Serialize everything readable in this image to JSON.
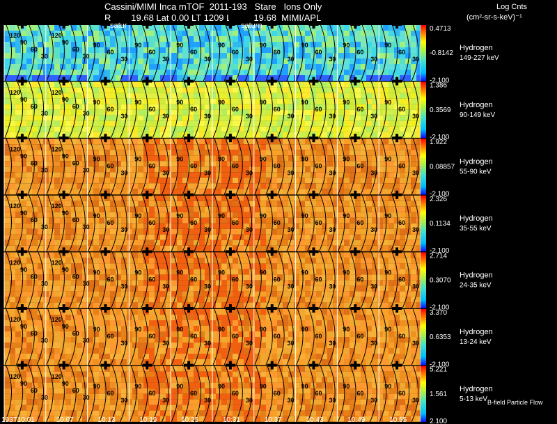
{
  "header": {
    "title": "Cassini/MIMI Inca mTOF  2011-193   Stare   Ions Only",
    "line2": "R        19.68 Lat 0.00 LT 1209 L         19.68  MIMI/APL",
    "colorbar_title_1": "Log Cnts",
    "colorbar_title_2": "(cm²-sr-s-keV)⁻¹"
  },
  "overlay_labels": [
    "satur",
    "saturn"
  ],
  "footer_note": "B-field Particle Flow",
  "colors": {
    "background": "#000000",
    "contour": "#000000",
    "grid": "#ffffff"
  },
  "chart_data": {
    "type": "heatmap",
    "time_labels": [
      "193T10:01",
      "10:07",
      "10:13",
      "10:19",
      "10:25",
      "10:31",
      "10:37",
      "10:43",
      "10:49",
      "10:55"
    ],
    "contour_values": [
      "120",
      "90",
      "60",
      "30"
    ],
    "panels": [
      {
        "species": "Hydrogen",
        "energy": "149-227 keV",
        "max": "0.4713",
        "mid": "-0.8142",
        "min": "-2.100",
        "palette": "cool"
      },
      {
        "species": "Hydrogen",
        "energy": "90-149 keV",
        "max": "1.386",
        "mid": "0.3569",
        "min": "-2.100",
        "palette": "yellow"
      },
      {
        "species": "Hydrogen",
        "energy": "55-90 keV",
        "max": "1.922",
        "mid": "0.08857",
        "min": "-2.100",
        "palette": "orange"
      },
      {
        "species": "Hydrogen",
        "energy": "35-55 keV",
        "max": "2.326",
        "mid": "0.1134",
        "min": "-2.100",
        "palette": "orange"
      },
      {
        "species": "Hydrogen",
        "energy": "24-35 keV",
        "max": "2.714",
        "mid": "0.3070",
        "min": "-2.100",
        "palette": "orange"
      },
      {
        "species": "Hydrogen",
        "energy": "13-24 keV",
        "max": "3.370",
        "mid": "0.6353",
        "min": "-2.100",
        "palette": "orange"
      },
      {
        "species": "Hydrogen",
        "energy": "5-13 keV",
        "max": "5.221",
        "mid": "1.561",
        "min": "2.100",
        "palette": "orange"
      }
    ]
  }
}
